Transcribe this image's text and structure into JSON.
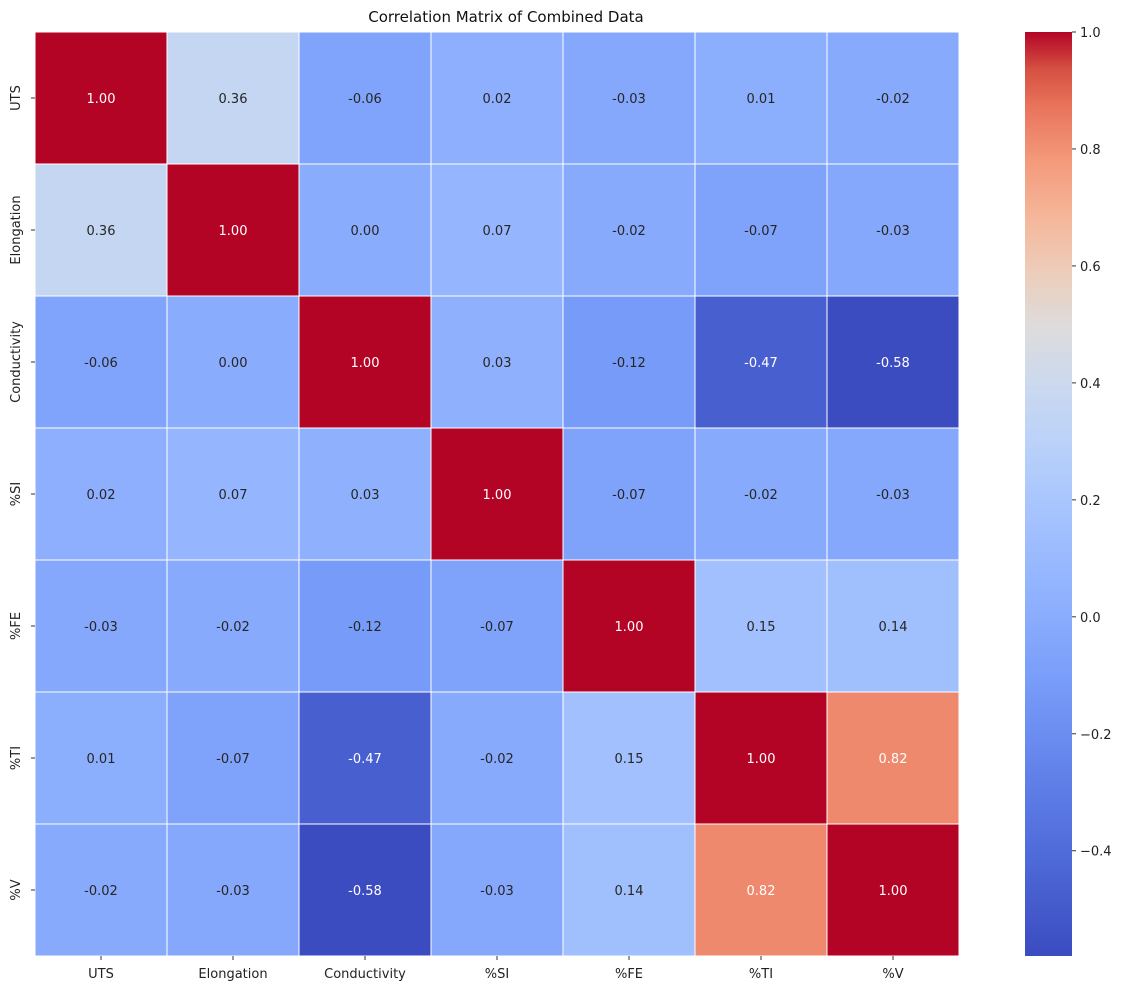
{
  "chart_data": {
    "type": "heatmap",
    "title": "Correlation Matrix of Combined Data",
    "xlabel": "",
    "ylabel": "",
    "row_labels": [
      "UTS",
      "Elongation",
      "Conductivity",
      "%SI",
      "%FE",
      "%TI",
      "%V"
    ],
    "col_labels": [
      "UTS",
      "Elongation",
      "Conductivity",
      "%SI",
      "%FE",
      "%TI",
      "%V"
    ],
    "matrix": [
      [
        1.0,
        0.36,
        -0.06,
        0.02,
        -0.03,
        0.01,
        -0.02
      ],
      [
        0.36,
        1.0,
        0.0,
        0.07,
        -0.02,
        -0.07,
        -0.03
      ],
      [
        -0.06,
        0.0,
        1.0,
        0.03,
        -0.12,
        -0.47,
        -0.58
      ],
      [
        0.02,
        0.07,
        0.03,
        1.0,
        -0.07,
        -0.02,
        -0.03
      ],
      [
        -0.03,
        -0.02,
        -0.12,
        -0.07,
        1.0,
        0.15,
        0.14
      ],
      [
        0.01,
        -0.07,
        -0.47,
        -0.02,
        0.15,
        1.0,
        0.82
      ],
      [
        -0.02,
        -0.03,
        -0.58,
        -0.03,
        0.14,
        0.82,
        1.0
      ]
    ],
    "annotation_format": "0.00",
    "colormap": "coolwarm",
    "vmin": -0.58,
    "vmax": 1.0,
    "colorbar_ticks": [
      1.0,
      0.8,
      0.6,
      0.4,
      0.2,
      0.0,
      -0.2,
      -0.4
    ],
    "colorbar_tick_labels": [
      "1.0",
      "0.8",
      "0.6",
      "0.4",
      "0.2",
      "0.0",
      "−0.2",
      "−0.4"
    ]
  }
}
